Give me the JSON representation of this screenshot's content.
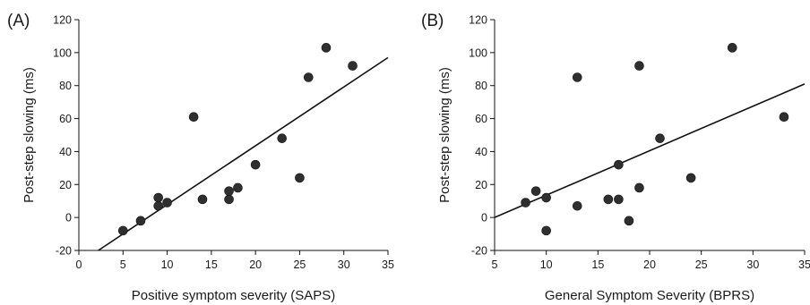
{
  "chart_data": [
    {
      "type": "scatter",
      "panel_label": "(A)",
      "xlabel": "Positive symptom severity (SAPS)",
      "ylabel": "Post-step slowing (ms)",
      "xlim": [
        0,
        35
      ],
      "ylim": [
        -20,
        120
      ],
      "xticks": [
        0,
        5,
        10,
        15,
        20,
        25,
        30,
        35
      ],
      "yticks": [
        -20,
        0,
        20,
        40,
        60,
        80,
        100,
        120
      ],
      "points": [
        {
          "x": 5,
          "y": -8
        },
        {
          "x": 7,
          "y": -2
        },
        {
          "x": 9,
          "y": 12
        },
        {
          "x": 9,
          "y": 7
        },
        {
          "x": 10,
          "y": 9
        },
        {
          "x": 13,
          "y": 61
        },
        {
          "x": 14,
          "y": 11
        },
        {
          "x": 17,
          "y": 11
        },
        {
          "x": 17,
          "y": 16
        },
        {
          "x": 18,
          "y": 18
        },
        {
          "x": 20,
          "y": 32
        },
        {
          "x": 23,
          "y": 48
        },
        {
          "x": 25,
          "y": 24
        },
        {
          "x": 26,
          "y": 85
        },
        {
          "x": 28,
          "y": 103
        },
        {
          "x": 31,
          "y": 92
        }
      ],
      "trendline": {
        "x": [
          2.2,
          35
        ],
        "y": [
          -20,
          97
        ]
      },
      "grid": false,
      "legend": "none"
    },
    {
      "type": "scatter",
      "panel_label": "(B)",
      "xlabel": "General Symptom Severity (BPRS)",
      "ylabel": "Post-step slowing (ms)",
      "xlim": [
        5,
        35
      ],
      "ylim": [
        -20,
        120
      ],
      "xticks": [
        5,
        10,
        15,
        20,
        25,
        30,
        35
      ],
      "yticks": [
        -20,
        0,
        20,
        40,
        60,
        80,
        100,
        120
      ],
      "points": [
        {
          "x": 8,
          "y": 9
        },
        {
          "x": 9,
          "y": 16
        },
        {
          "x": 10,
          "y": 12
        },
        {
          "x": 10,
          "y": -8
        },
        {
          "x": 13,
          "y": 85
        },
        {
          "x": 13,
          "y": 7
        },
        {
          "x": 16,
          "y": 11
        },
        {
          "x": 17,
          "y": 11
        },
        {
          "x": 17,
          "y": 32
        },
        {
          "x": 18,
          "y": -2
        },
        {
          "x": 19,
          "y": 18
        },
        {
          "x": 19,
          "y": 92
        },
        {
          "x": 21,
          "y": 48
        },
        {
          "x": 24,
          "y": 24
        },
        {
          "x": 28,
          "y": 103
        },
        {
          "x": 33,
          "y": 61
        }
      ],
      "trendline": {
        "x": [
          5,
          35
        ],
        "y": [
          0,
          81
        ]
      },
      "grid": false,
      "legend": "none"
    }
  ],
  "colors": {
    "point": "#2f2f2f",
    "line": "#111111",
    "axis": "#111111"
  }
}
